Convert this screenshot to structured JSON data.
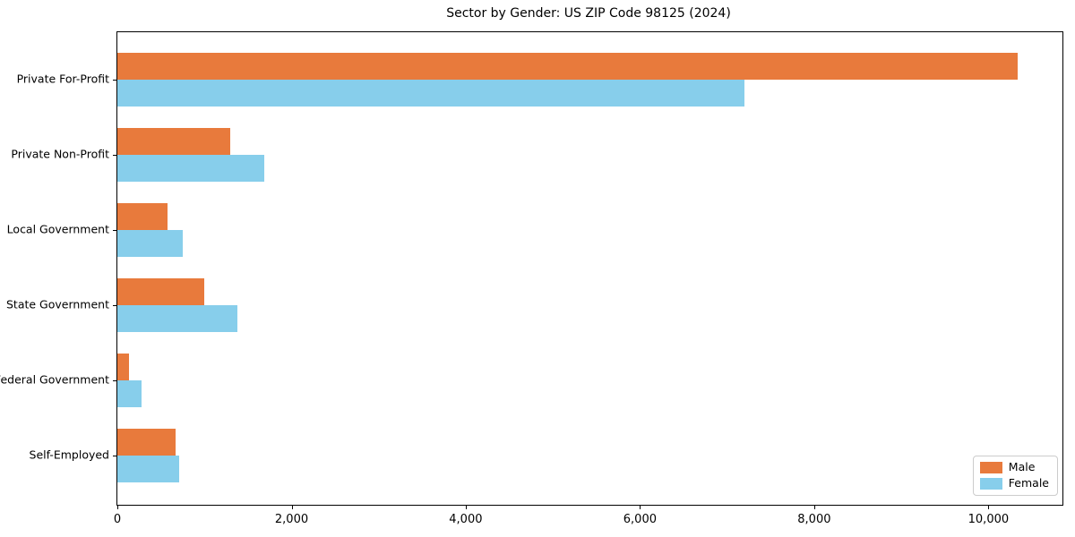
{
  "title": "Sector by Gender: US ZIP Code 98125 (2024)",
  "colors": {
    "male": "#e87a3c",
    "female": "#87ceeb",
    "spine": "#000000",
    "text": "#000000",
    "legend_border": "#cccccc",
    "background": "#ffffff"
  },
  "chart_data": {
    "type": "bar",
    "orientation": "horizontal",
    "title": "Sector by Gender: US ZIP Code 98125 (2024)",
    "xlabel": "",
    "ylabel": "",
    "categories": [
      "Private For-Profit",
      "Private Non-Profit",
      "Local Government",
      "State Government",
      "Federal Government",
      "Self-Employed"
    ],
    "series": [
      {
        "name": "Male",
        "color": "#e87a3c",
        "values": [
          10340,
          1300,
          575,
          1000,
          130,
          670
        ]
      },
      {
        "name": "Female",
        "color": "#87ceeb",
        "values": [
          7200,
          1690,
          750,
          1380,
          275,
          710
        ]
      }
    ],
    "xlim": [
      0,
      10850
    ],
    "x_ticks": [
      0,
      2000,
      4000,
      6000,
      8000,
      10000
    ],
    "x_tick_labels": [
      "0",
      "2,000",
      "4,000",
      "6,000",
      "8,000",
      "10,000"
    ],
    "grid": false,
    "legend_position": "lower right"
  }
}
